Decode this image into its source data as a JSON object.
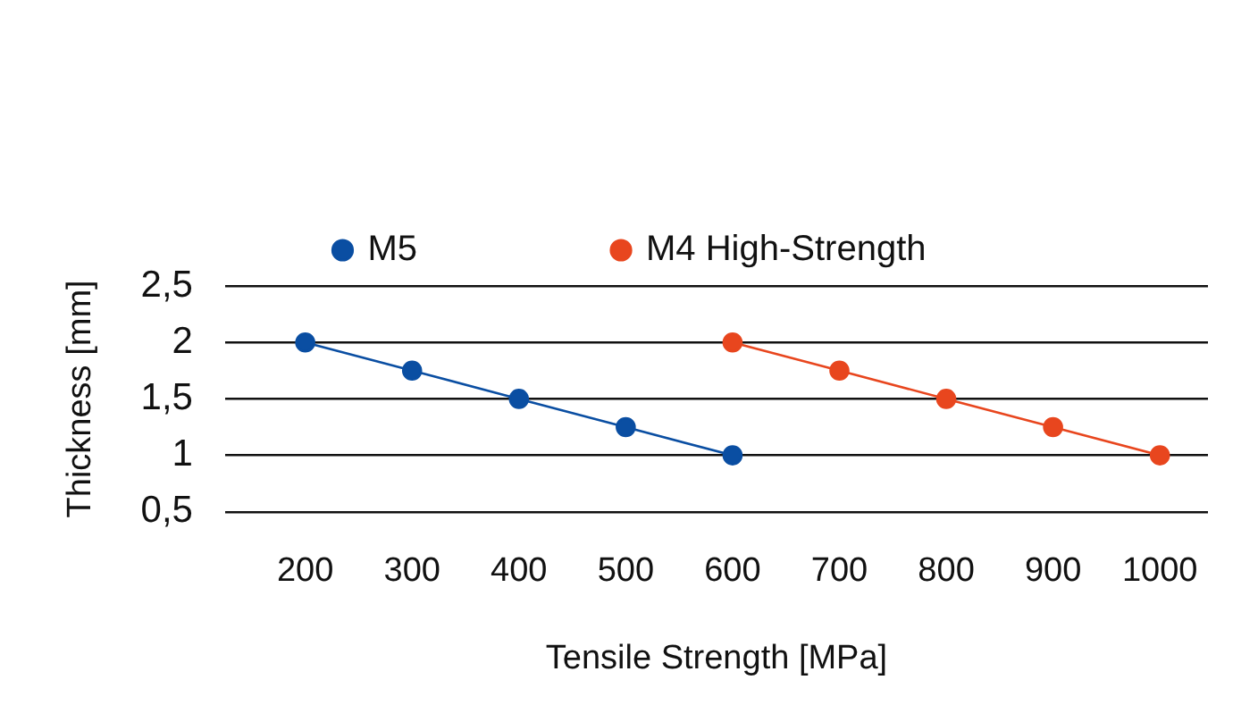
{
  "chart_data": {
    "type": "line",
    "xlabel": "Tensile Strength [MPa]",
    "ylabel": "Thickness [mm]",
    "series": [
      {
        "name": "M5",
        "color": "#0a4ea2",
        "x": [
          200,
          300,
          400,
          500,
          600
        ],
        "values": [
          2,
          1.75,
          1.5,
          1.25,
          1
        ]
      },
      {
        "name": "M4 High-Strength",
        "color": "#e8461e",
        "x": [
          600,
          700,
          800,
          900,
          1000
        ],
        "values": [
          2,
          1.75,
          1.5,
          1.25,
          1
        ]
      }
    ],
    "xlim": [
      125,
      1045
    ],
    "xticks": [
      200,
      300,
      400,
      500,
      600,
      700,
      800,
      900,
      1000
    ],
    "ylim": [
      0.5,
      2.5
    ],
    "yticks": [
      {
        "value": 0.5,
        "label": "0,5"
      },
      1,
      {
        "value": 1.5,
        "label": "1,5"
      },
      2,
      {
        "value": 2.5,
        "label": "2,5"
      }
    ],
    "grid": "y",
    "legend": "top",
    "marker": "circle"
  }
}
